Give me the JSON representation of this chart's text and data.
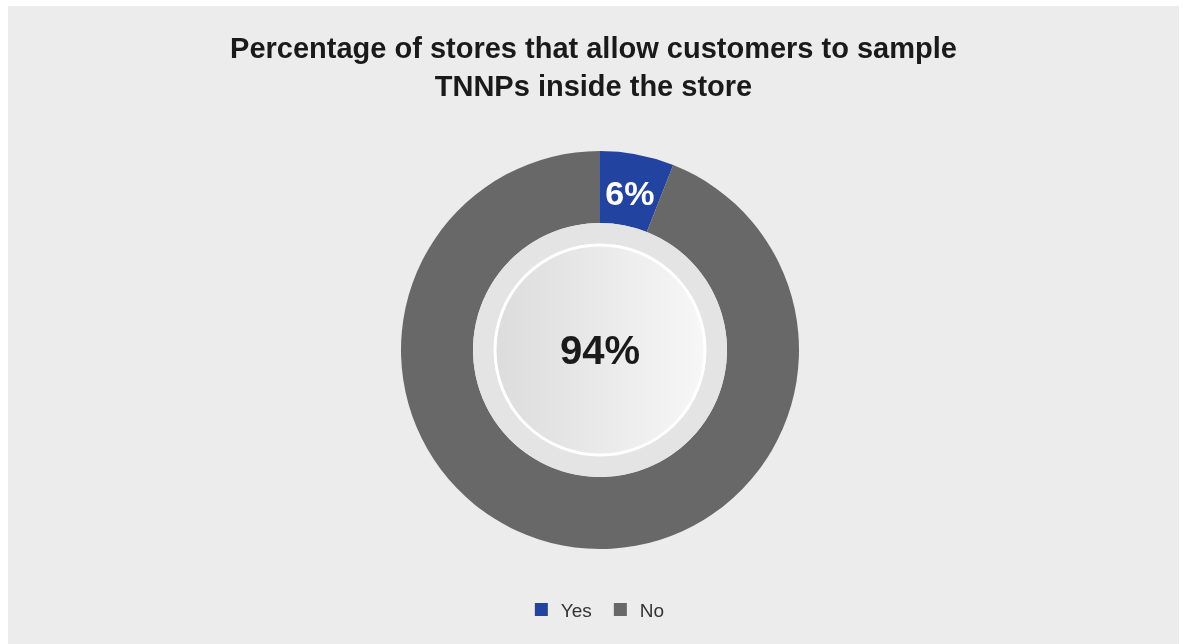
{
  "chart_data": {
    "type": "donut",
    "title": "Percentage of stores that allow customers to sample TNNPs inside the store",
    "categories": [
      "Yes",
      "No"
    ],
    "values": [
      6,
      94
    ],
    "colors": [
      "#2343a0",
      "#686868"
    ],
    "value_labels": [
      "6%",
      "94%"
    ],
    "legend": "bottom"
  }
}
